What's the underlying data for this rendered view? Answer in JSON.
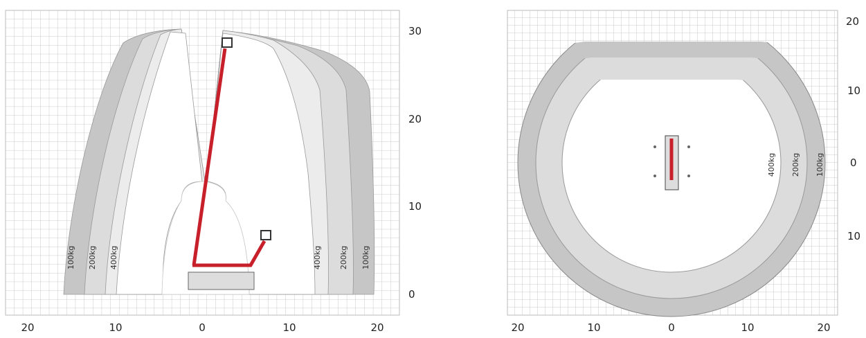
{
  "side_view": {
    "y_labels": [
      "30",
      "20",
      "10",
      "0"
    ],
    "x_labels": [
      "20",
      "10",
      "0",
      "10",
      "20"
    ],
    "load_labels_left": [
      "100kg",
      "200kg",
      "400kg"
    ],
    "load_labels_right": [
      "400kg",
      "200kg",
      "100kg"
    ]
  },
  "top_view": {
    "y_labels": [
      "20",
      "10",
      "0",
      "10"
    ],
    "x_labels": [
      "20",
      "10",
      "0",
      "10",
      "20"
    ],
    "load_labels": [
      "400kg",
      "200kg",
      "100kg"
    ]
  }
}
